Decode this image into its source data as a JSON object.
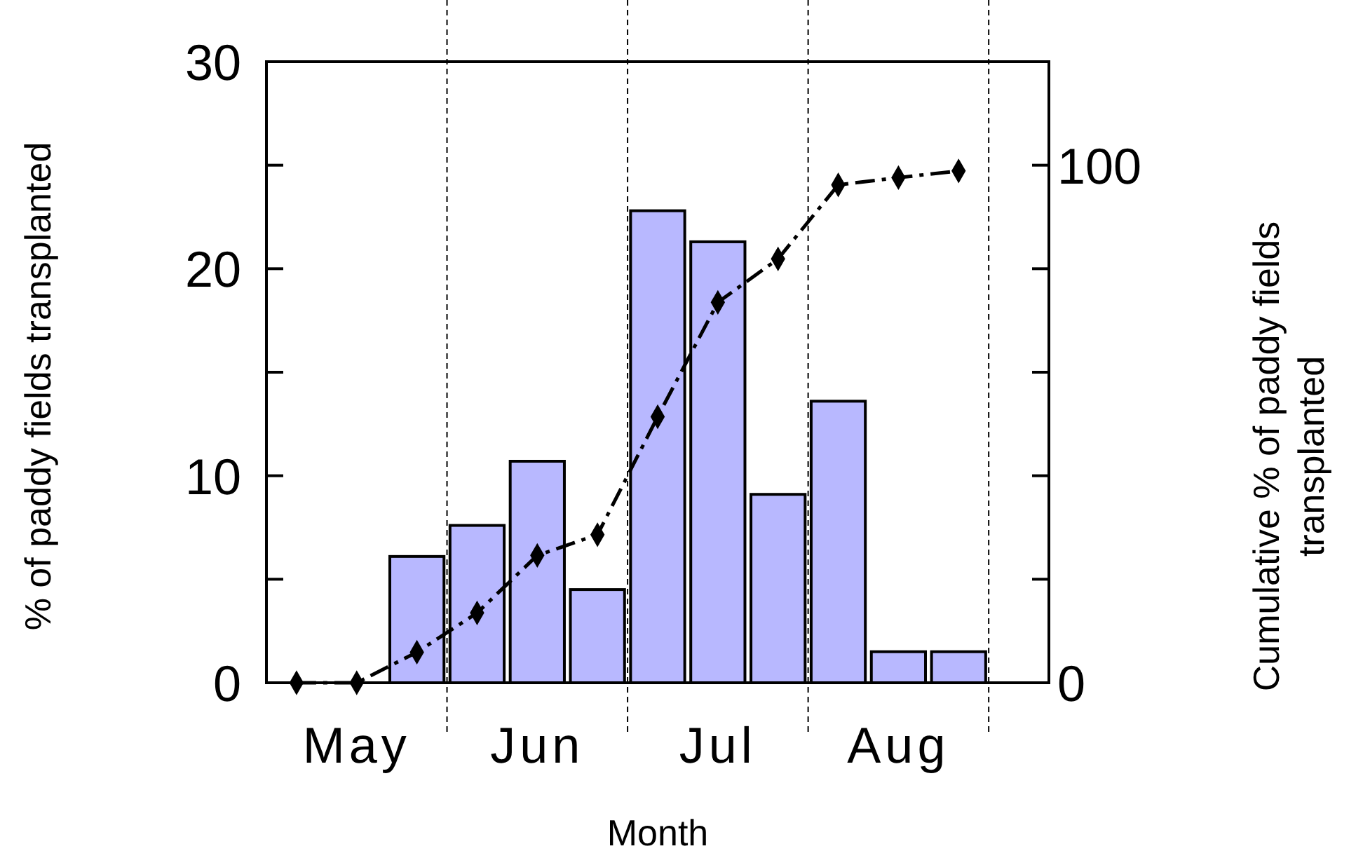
{
  "chart_data": {
    "type": "bar",
    "xlabel": "Month",
    "ylabel": "% of paddy fields transplanted",
    "y2label": "Cumulative % of paddy fields transplanted",
    "categories": [
      null,
      "May",
      null,
      null,
      "Jun",
      null,
      null,
      "Jul",
      null,
      null,
      "Aug",
      null
    ],
    "ylim": [
      0,
      30
    ],
    "yticks": [
      0,
      {
        "value": 5,
        "label": null
      },
      10,
      {
        "value": 15,
        "label": null
      },
      20,
      {
        "value": 25,
        "label": null
      },
      30
    ],
    "y2lim": [
      0,
      120
    ],
    "y2ticks": [
      0,
      {
        "value": 20,
        "label": null
      },
      {
        "value": 40,
        "label": null
      },
      {
        "value": 60,
        "label": null
      },
      {
        "value": 80,
        "label": null
      },
      100,
      {
        "value": 120,
        "label": null
      }
    ],
    "series": [
      {
        "color": "#b8b8ff",
        "values": [
          0,
          0,
          6.1,
          7.6,
          10.7,
          4.5,
          22.8,
          21.3,
          9.1,
          13.6,
          1.5,
          1.5
        ]
      },
      {
        "type": "line",
        "axis": "y2",
        "color": "#000000",
        "marker": "diamond",
        "line_style": "dashed",
        "values": [
          0,
          0,
          5.9,
          13.5,
          24.6,
          28.6,
          51.4,
          73.5,
          81.9,
          96.2,
          97.6,
          98.9
        ]
      }
    ],
    "grid": false
  }
}
